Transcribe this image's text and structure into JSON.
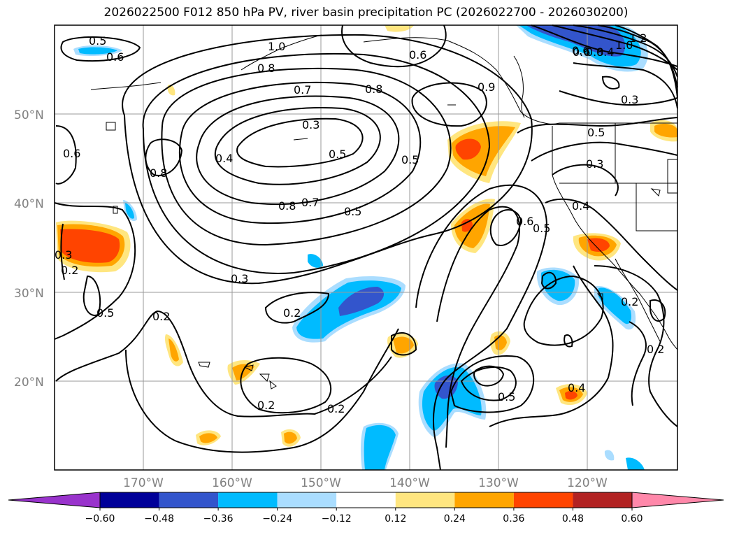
{
  "title": "2026022500 F012 850 hPa PV, river basin precipitation PC (2026022700 - 2026030200)",
  "lat_labels": [
    "50°N",
    "40°N",
    "30°N",
    "20°N"
  ],
  "lon_labels": [
    "170°W",
    "160°W",
    "150°W",
    "140°W",
    "130°W",
    "120°W"
  ],
  "contour_labels": [
    "0.5",
    "0.6",
    "1.0",
    "0.8",
    "0.7",
    "0.8",
    "0.6",
    "0.9",
    "0.3",
    "0.4",
    "0.5",
    "0.5",
    "0.6",
    "0.8",
    "0.8",
    "0.5",
    "0.6",
    "0.7",
    "0.3",
    "0.5",
    "0.3",
    "0.4",
    "0.6",
    "0.5",
    "0.4",
    "0.3",
    "0.2",
    "0.5",
    "0.3",
    "0.2",
    "0.2",
    "0.2",
    "0.2",
    "0.2",
    "0.5",
    "0.4",
    "0.2",
    "1.2",
    "1.0",
    "0.8",
    "0.6"
  ],
  "colorbar": {
    "ticks": [
      "−0.60",
      "−0.48",
      "−0.36",
      "−0.24",
      "−0.12",
      "0.12",
      "0.24",
      "0.36",
      "0.48",
      "0.60"
    ],
    "colors": [
      "#9933cc",
      "#000099",
      "#3355cc",
      "#00bbff",
      "#aaddff",
      "#ffffff",
      "#ffe680",
      "#ffa500",
      "#ff4400",
      "#b22222",
      "#ff88aa"
    ],
    "under_color": "#9933cc",
    "over_color": "#ff88aa"
  },
  "colors": {
    "contour": "#000000",
    "grid": "#999999",
    "coast": "#000000"
  }
}
